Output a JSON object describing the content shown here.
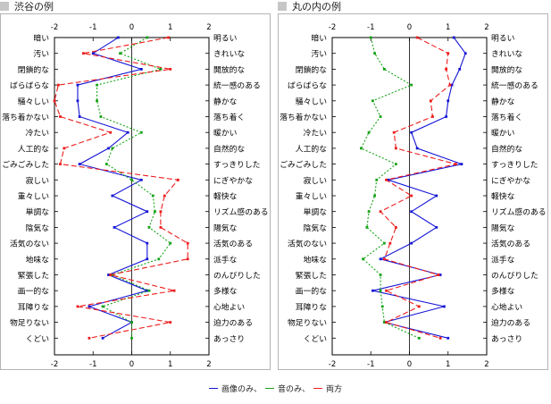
{
  "panels": [
    {
      "title": "渋谷の例"
    },
    {
      "title": "丸の内の例"
    }
  ],
  "legend": {
    "image_label": "画像のみ、",
    "sound_label": "音のみ、",
    "both_label": "両方"
  },
  "colors": {
    "image": "#1515d6",
    "sound": "#17a317",
    "both": "#ee1c1c"
  },
  "chart_data": [
    {
      "type": "line",
      "title": "渋谷の例",
      "orientation": "horizontal",
      "xlim": [
        -2,
        2
      ],
      "xticks": [
        "-2",
        "-1",
        "0",
        "1",
        "2"
      ],
      "left_labels": [
        "暗い",
        "汚い",
        "閉鎖的な",
        "ばらばらな",
        "騒々しい",
        "落ち着かない",
        "冷たい",
        "人工的な",
        "ごみごみした",
        "寂しい",
        "重々しい",
        "単調な",
        "陰気な",
        "活気のない",
        "地味な",
        "緊張した",
        "画一的な",
        "耳障りな",
        "物足りない",
        "くどい"
      ],
      "right_labels": [
        "明るい",
        "きれいな",
        "開放的な",
        "統一感のある",
        "静かな",
        "落ち着く",
        "暖かい",
        "自然的な",
        "すっきりした",
        "にぎやかな",
        "軽快な",
        "リズム感のある",
        "陽気な",
        "活気のある",
        "派手な",
        "のんびりした",
        "多様な",
        "心地よい",
        "迫力のある",
        "あっさり"
      ],
      "series": [
        {
          "name": "画像のみ",
          "values": [
            -0.35,
            -1.0,
            0.25,
            -1.4,
            -1.4,
            -1.35,
            -0.1,
            -0.6,
            -1.35,
            0.25,
            -0.5,
            0.4,
            -0.45,
            0.4,
            0.4,
            -0.6,
            0.4,
            -1.1,
            0.0,
            -0.75
          ]
        },
        {
          "name": "音のみ",
          "values": [
            0.4,
            -0.3,
            0.75,
            -0.9,
            -0.9,
            -0.8,
            0.25,
            -0.5,
            -0.65,
            0.0,
            0.55,
            0.6,
            0.45,
            1.0,
            0.7,
            -0.5,
            0.45,
            -0.75,
            0.0,
            0.0
          ]
        },
        {
          "name": "両方",
          "values": [
            0.95,
            -1.25,
            1.0,
            -1.9,
            -2.0,
            -1.85,
            -0.55,
            -1.75,
            -1.85,
            1.2,
            0.85,
            0.75,
            0.75,
            1.45,
            1.45,
            -0.55,
            1.1,
            -1.4,
            1.0,
            -1.1
          ]
        }
      ]
    },
    {
      "type": "line",
      "title": "丸の内の例",
      "orientation": "horizontal",
      "xlim": [
        -2,
        2
      ],
      "xticks": [
        "-2",
        "-1",
        "0",
        "1",
        "2"
      ],
      "left_labels": [
        "暗い",
        "汚い",
        "閉鎖的な",
        "ばらばらな",
        "騒々しい",
        "落ち着かない",
        "冷たい",
        "人工的な",
        "ごみごみした",
        "寂しい",
        "重々しい",
        "単調な",
        "陰気な",
        "活気のない",
        "地味な",
        "緊張した",
        "画一的な",
        "耳障りな",
        "物足りない",
        "くどい"
      ],
      "right_labels": [
        "明るい",
        "きれいな",
        "開放的な",
        "統一感のある",
        "静かな",
        "落ち着く",
        "暖かい",
        "自然的な",
        "すっきりした",
        "にぎやかな",
        "軽快な",
        "リズム感のある",
        "陽気な",
        "活気のある",
        "派手な",
        "のんびりした",
        "多様な",
        "心地よい",
        "迫力のある",
        "あっさり"
      ],
      "series": [
        {
          "name": "画像のみ",
          "values": [
            1.15,
            1.45,
            1.3,
            1.1,
            1.0,
            0.95,
            0.05,
            0.2,
            1.35,
            -0.55,
            0.7,
            0.05,
            0.7,
            0.05,
            -0.75,
            0.8,
            -0.95,
            0.9,
            -0.65,
            1.0
          ]
        },
        {
          "name": "音のみ",
          "values": [
            -1.0,
            -0.9,
            -0.65,
            0.05,
            -0.95,
            -0.75,
            -1.05,
            -1.25,
            -0.35,
            -0.85,
            -0.9,
            -1.05,
            -1.1,
            -0.65,
            -1.2,
            -0.75,
            -0.75,
            -0.7,
            -0.65,
            0.25
          ]
        },
        {
          "name": "両方",
          "values": [
            0.2,
            1.0,
            0.95,
            1.05,
            0.55,
            0.6,
            -0.4,
            -0.35,
            1.2,
            -0.6,
            0.05,
            -0.75,
            -0.35,
            -0.5,
            -0.65,
            0.75,
            -0.6,
            0.25,
            -0.6,
            0.8
          ]
        }
      ]
    }
  ]
}
